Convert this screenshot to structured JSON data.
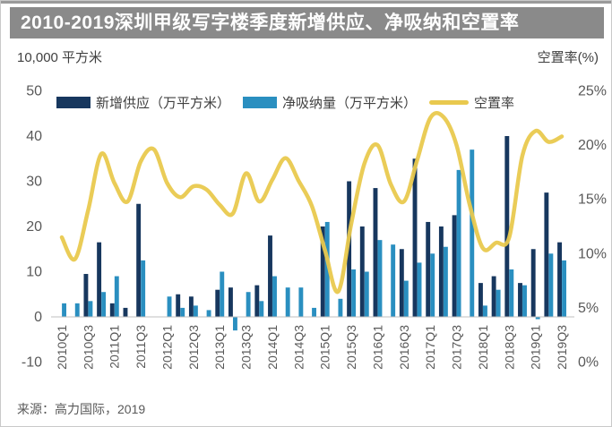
{
  "title": "2010-2019深圳甲级写字楼季度新增供应、净吸纳和空置率",
  "axis": {
    "left_unit": "10,000 平方米",
    "right_unit": "空置率(%)"
  },
  "legend": {
    "items": [
      {
        "label": "新增供应（万平方米）",
        "type": "bar",
        "color": "#17375e"
      },
      {
        "label": "净吸纳量（万平方米）",
        "type": "bar",
        "color": "#2a8fc0"
      },
      {
        "label": "空置率",
        "type": "line",
        "color": "#e9c94e"
      }
    ]
  },
  "source": "来源：高力国际，2019",
  "colors": {
    "title_bar_bg": "#8a8a8a",
    "title_text": "#ffffff",
    "supply_bar": "#17375e",
    "absorption_bar": "#2a8fc0",
    "vacancy_line": "#e9c94e",
    "axis_text": "#595959",
    "zero_axis_line": "#bfbfbf"
  },
  "chart_data": {
    "type": "bar",
    "subtype": "combo bar + line, dual axis",
    "categories": [
      "2010Q1",
      "2010Q2",
      "2010Q3",
      "2010Q4",
      "2011Q1",
      "2011Q2",
      "2011Q3",
      "2011Q4",
      "2012Q1",
      "2012Q2",
      "2012Q3",
      "2012Q4",
      "2013Q1",
      "2013Q2",
      "2013Q3",
      "2013Q4",
      "2014Q1",
      "2014Q2",
      "2014Q3",
      "2014Q4",
      "2015Q1",
      "2015Q2",
      "2015Q3",
      "2015Q4",
      "2016Q1",
      "2016Q2",
      "2016Q3",
      "2016Q4",
      "2017Q1",
      "2017Q2",
      "2017Q3",
      "2017Q4",
      "2018Q1",
      "2018Q2",
      "2018Q3",
      "2018Q4",
      "2019Q1",
      "2019Q2",
      "2019Q3"
    ],
    "x_tick_labels": [
      "2010Q1",
      "2010Q3",
      "2011Q1",
      "2011Q3",
      "2012Q1",
      "2012Q3",
      "2013Q1",
      "2013Q3",
      "2014Q1",
      "2014Q3",
      "2015Q1",
      "2015Q3",
      "2016Q1",
      "2016Q3",
      "2017Q1",
      "2017Q3",
      "2018Q1",
      "2018Q3",
      "2019Q1",
      "2019Q3"
    ],
    "series": [
      {
        "name": "新增供应（万平方米）",
        "type": "bar",
        "axis": "left",
        "color": "#17375e",
        "values": [
          0,
          0,
          9.5,
          16.5,
          3,
          2,
          25,
          0,
          0,
          5,
          4.5,
          0,
          6,
          6.5,
          0,
          7,
          18,
          0,
          0,
          0,
          20,
          0,
          30,
          20,
          28.5,
          0,
          15,
          35,
          21,
          20,
          22.5,
          0,
          7.5,
          9,
          40,
          7.5,
          15,
          27.5,
          16.5
        ]
      },
      {
        "name": "净吸纳量（万平方米）",
        "type": "bar",
        "axis": "left",
        "color": "#2a8fc0",
        "values": [
          3,
          3,
          3.5,
          5.5,
          9,
          0,
          12.5,
          0,
          4.5,
          2,
          2.5,
          1.5,
          10,
          -3,
          5.5,
          3.5,
          9,
          6.5,
          6.5,
          2,
          21,
          4,
          10.5,
          10,
          17,
          16,
          8,
          12,
          14,
          15.5,
          32.5,
          37,
          2.5,
          6,
          10.5,
          7,
          -0.5,
          14,
          12.5
        ]
      },
      {
        "name": "空置率",
        "type": "line",
        "axis": "right",
        "color": "#e9c94e",
        "values": [
          11.5,
          9.5,
          14,
          19.2,
          16.5,
          14.8,
          18.5,
          19.6,
          16.5,
          15.2,
          16.2,
          15.9,
          14.5,
          13.7,
          17.4,
          14.8,
          16.8,
          18.8,
          16.7,
          14.4,
          10.3,
          6.5,
          12.8,
          18.3,
          20,
          16.4,
          14.8,
          18.6,
          22.5,
          22.6,
          20,
          14.5,
          10.5,
          11,
          11.5,
          19,
          21.3,
          20.3,
          20.8
        ]
      }
    ],
    "left_axis": {
      "min": -10,
      "max": 50,
      "ticks": [
        50,
        40,
        30,
        20,
        10,
        0,
        -10
      ]
    },
    "right_axis": {
      "min": 0,
      "max": 25,
      "ticks": [
        "25%",
        "20%",
        "15%",
        "10%",
        "5%",
        "0%"
      ],
      "tick_values": [
        25,
        20,
        15,
        10,
        5,
        0
      ]
    },
    "grid": false,
    "legend_position": "top"
  }
}
